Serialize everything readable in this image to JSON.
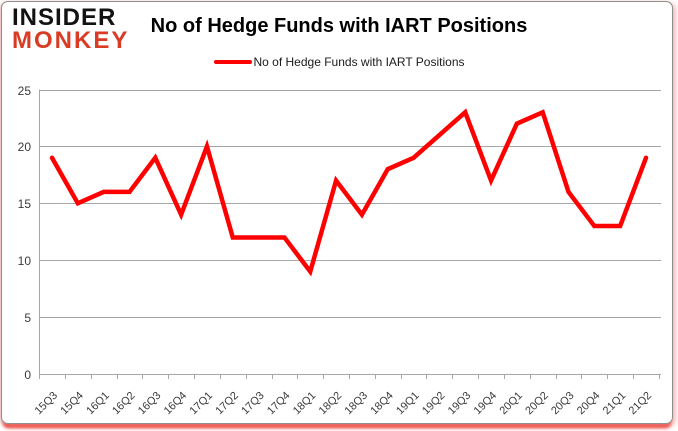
{
  "brand": {
    "line1": "INSIDER",
    "line2": "MONKEY"
  },
  "header": {
    "title": "No of Hedge Funds with IART Positions"
  },
  "legend": {
    "label": "No of Hedge Funds with IART Positions"
  },
  "colors": {
    "series_red": "#ff0000",
    "logo_red": "#d93b25",
    "grid_gray": "#a6a6a6",
    "axis_text": "#3a3a3a",
    "bottom_glow_red": "#ee1c10"
  },
  "chart_data": {
    "type": "line",
    "title": "No of Hedge Funds with IART Positions",
    "categories": [
      "15Q3",
      "15Q4",
      "16Q1",
      "16Q2",
      "16Q3",
      "16Q4",
      "17Q1",
      "17Q2",
      "17Q3",
      "17Q4",
      "18Q1",
      "18Q2",
      "18Q3",
      "18Q4",
      "19Q1",
      "19Q2",
      "19Q3",
      "19Q4",
      "20Q1",
      "20Q2",
      "20Q3",
      "20Q4",
      "21Q1",
      "21Q2"
    ],
    "series": [
      {
        "name": "No of Hedge Funds with IART Positions",
        "color": "#ff0000",
        "values": [
          19,
          15,
          16,
          16,
          19,
          14,
          20,
          12,
          12,
          12,
          9,
          17,
          14,
          18,
          19,
          21,
          23,
          17,
          22,
          23,
          16,
          13,
          13,
          19
        ]
      }
    ],
    "xlabel": "",
    "ylabel": "",
    "ylim": [
      0,
      25
    ],
    "yticks": [
      0,
      5,
      10,
      15,
      20,
      25
    ],
    "grid": true,
    "legend_position": "top-center"
  }
}
